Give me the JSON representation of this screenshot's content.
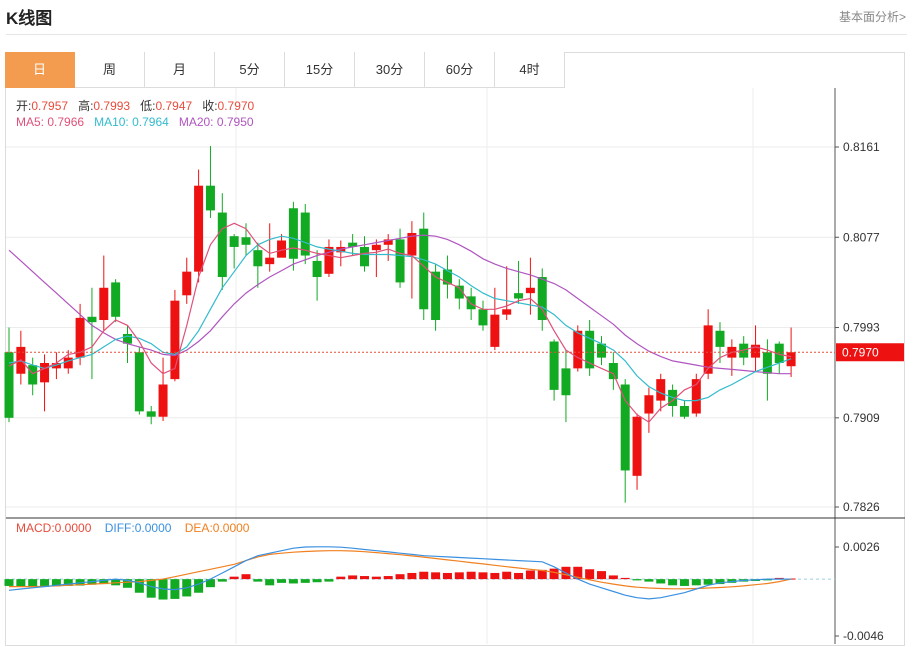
{
  "header": {
    "title": "K线图",
    "link": "基本面分析>"
  },
  "tabs": [
    {
      "label": "日",
      "active": true
    },
    {
      "label": "周",
      "active": false
    },
    {
      "label": "月",
      "active": false
    },
    {
      "label": "5分",
      "active": false
    },
    {
      "label": "15分",
      "active": false
    },
    {
      "label": "30分",
      "active": false
    },
    {
      "label": "60分",
      "active": false
    },
    {
      "label": "4时",
      "active": false
    }
  ],
  "ohlc_info": {
    "open_label": "开:",
    "open": "0.7957",
    "high_label": "高:",
    "high": "0.7993",
    "low_label": "低:",
    "low": "0.7947",
    "close_label": "收:",
    "close": "0.7970"
  },
  "ma_info": {
    "ma5_label": "MA5:",
    "ma5": "0.7966",
    "ma10_label": "MA10:",
    "ma10": "0.7964",
    "ma20_label": "MA20:",
    "ma20": "0.7950"
  },
  "macd_info": {
    "macd_label": "MACD:",
    "macd": "0.0000",
    "diff_label": "DIFF:",
    "diff": "0.0000",
    "dea_label": "DEA:",
    "dea": "0.0000"
  },
  "colors": {
    "up": "#ee1111",
    "down": "#11aa22",
    "ma5": "#e0507a",
    "ma10": "#33bbcc",
    "ma20": "#b055c0",
    "diff": "#3a90e0",
    "dea": "#f08020",
    "accent": "#f39c4f"
  },
  "chart_data": {
    "type": "candlestick",
    "price_ticks": [
      "0.8161",
      "0.8077",
      "0.7993",
      "0.7909",
      "0.7826"
    ],
    "price_range": [
      0.7826,
      0.8161
    ],
    "current_price": "0.7970",
    "macd_ticks": [
      "0.0026",
      "-0.0046"
    ],
    "macd_range": [
      -0.0046,
      0.0026
    ],
    "candles": [
      [
        0.797,
        0.7909,
        0.7993,
        0.7905
      ],
      [
        0.795,
        0.7975,
        0.799,
        0.794
      ],
      [
        0.7958,
        0.794,
        0.7965,
        0.793
      ],
      [
        0.7942,
        0.796,
        0.7968,
        0.7915
      ],
      [
        0.7955,
        0.796,
        0.797,
        0.7945
      ],
      [
        0.7955,
        0.7965,
        0.7972,
        0.795
      ],
      [
        0.7965,
        0.8002,
        0.8015,
        0.7958
      ],
      [
        0.8003,
        0.7998,
        0.803,
        0.7945
      ],
      [
        0.8,
        0.803,
        0.806,
        0.799
      ],
      [
        0.8035,
        0.8003,
        0.8038,
        0.7998
      ],
      [
        0.7987,
        0.7978,
        0.7995,
        0.796
      ],
      [
        0.797,
        0.7915,
        0.7975,
        0.7912
      ],
      [
        0.7915,
        0.791,
        0.792,
        0.7903
      ],
      [
        0.791,
        0.794,
        0.7965,
        0.7906
      ],
      [
        0.7945,
        0.8018,
        0.8028,
        0.7943
      ],
      [
        0.8023,
        0.8045,
        0.8058,
        0.8015
      ],
      [
        0.8045,
        0.8125,
        0.814,
        0.8035
      ],
      [
        0.8125,
        0.8102,
        0.8162,
        0.8095
      ],
      [
        0.81,
        0.804,
        0.8118,
        0.8028
      ],
      [
        0.8078,
        0.8068,
        0.808,
        0.8048
      ],
      [
        0.8077,
        0.807,
        0.809,
        0.806
      ],
      [
        0.8065,
        0.805,
        0.8072,
        0.803
      ],
      [
        0.8052,
        0.8058,
        0.809,
        0.8045
      ],
      [
        0.8058,
        0.8074,
        0.808,
        0.8062
      ],
      [
        0.8104,
        0.8057,
        0.811,
        0.8046
      ],
      [
        0.81,
        0.806,
        0.8108,
        0.8052
      ],
      [
        0.8055,
        0.804,
        0.8065,
        0.8018
      ],
      [
        0.8043,
        0.8068,
        0.8075,
        0.804
      ],
      [
        0.8063,
        0.8068,
        0.8074,
        0.805
      ],
      [
        0.8072,
        0.8068,
        0.808,
        0.806
      ],
      [
        0.8068,
        0.805,
        0.8078,
        0.8045
      ],
      [
        0.8065,
        0.807,
        0.8075,
        0.804
      ],
      [
        0.807,
        0.8075,
        0.808,
        0.8055
      ],
      [
        0.8075,
        0.8035,
        0.8085,
        0.803
      ],
      [
        0.806,
        0.8081,
        0.8092,
        0.802
      ],
      [
        0.8085,
        0.801,
        0.81,
        0.8
      ],
      [
        0.8045,
        0.8,
        0.8052,
        0.799
      ],
      [
        0.8047,
        0.8033,
        0.806,
        0.802
      ],
      [
        0.8032,
        0.802,
        0.8038,
        0.801
      ],
      [
        0.8022,
        0.801,
        0.803,
        0.8
      ],
      [
        0.801,
        0.7995,
        0.8018,
        0.799
      ],
      [
        0.7975,
        0.8005,
        0.803,
        0.7972
      ],
      [
        0.8005,
        0.801,
        0.805,
        0.8
      ],
      [
        0.8025,
        0.802,
        0.8055,
        0.8015
      ],
      [
        0.8025,
        0.803,
        0.8058,
        0.8005
      ],
      [
        0.804,
        0.8,
        0.8048,
        0.799
      ],
      [
        0.798,
        0.7935,
        0.7982,
        0.7925
      ],
      [
        0.7955,
        0.793,
        0.7972,
        0.7905
      ],
      [
        0.7955,
        0.799,
        0.7995,
        0.7952
      ],
      [
        0.799,
        0.7955,
        0.8,
        0.7948
      ],
      [
        0.7978,
        0.7965,
        0.7985,
        0.7958
      ],
      [
        0.796,
        0.7945,
        0.797,
        0.7935
      ],
      [
        0.794,
        0.786,
        0.7945,
        0.783
      ],
      [
        0.7855,
        0.791,
        0.7913,
        0.7842
      ],
      [
        0.7913,
        0.793,
        0.7937,
        0.7895
      ],
      [
        0.7925,
        0.7945,
        0.795,
        0.7915
      ],
      [
        0.7935,
        0.792,
        0.794,
        0.791
      ],
      [
        0.792,
        0.791,
        0.7925,
        0.7908
      ],
      [
        0.7913,
        0.7945,
        0.795,
        0.791
      ],
      [
        0.795,
        0.7995,
        0.801,
        0.7945
      ],
      [
        0.799,
        0.7975,
        0.7998,
        0.796
      ],
      [
        0.7965,
        0.7975,
        0.7982,
        0.7948
      ],
      [
        0.7978,
        0.7965,
        0.7985,
        0.7958
      ],
      [
        0.7965,
        0.7977,
        0.7995,
        0.7952
      ],
      [
        0.797,
        0.795,
        0.7982,
        0.7925
      ],
      [
        0.7978,
        0.796,
        0.798,
        0.795
      ],
      [
        0.7957,
        0.797,
        0.7993,
        0.7947
      ]
    ],
    "ma5": [
      0.7957,
      0.7963,
      0.795,
      0.7955,
      0.796,
      0.7968,
      0.797,
      0.7975,
      0.799,
      0.8,
      0.7995,
      0.798,
      0.796,
      0.795,
      0.7955,
      0.7995,
      0.804,
      0.807,
      0.8085,
      0.809,
      0.8085,
      0.807,
      0.8062,
      0.8065,
      0.8067,
      0.8065,
      0.8062,
      0.806,
      0.8058,
      0.806,
      0.8062,
      0.8063,
      0.8066,
      0.8062,
      0.806,
      0.805,
      0.804,
      0.8035,
      0.803,
      0.8015,
      0.801,
      0.801,
      0.8013,
      0.8018,
      0.802,
      0.801,
      0.799,
      0.7972,
      0.7965,
      0.796,
      0.7955,
      0.795,
      0.7925,
      0.7912,
      0.7905,
      0.7918,
      0.7925,
      0.7935,
      0.794,
      0.7955,
      0.7965,
      0.797,
      0.7972,
      0.7975,
      0.7972,
      0.7968,
      0.7966
    ],
    "ma10": [
      0.796,
      0.7962,
      0.7958,
      0.7955,
      0.7958,
      0.7962,
      0.7965,
      0.7968,
      0.7975,
      0.7982,
      0.7985,
      0.7983,
      0.7978,
      0.797,
      0.7968,
      0.7975,
      0.799,
      0.801,
      0.803,
      0.8045,
      0.806,
      0.807,
      0.8075,
      0.8078,
      0.8076,
      0.8072,
      0.8068,
      0.8066,
      0.8064,
      0.8062,
      0.8061,
      0.8061,
      0.8061,
      0.806,
      0.8059,
      0.8056,
      0.8052,
      0.8046,
      0.804,
      0.8032,
      0.8025,
      0.802,
      0.8018,
      0.8016,
      0.8014,
      0.8012,
      0.8005,
      0.7995,
      0.7988,
      0.7983,
      0.7978,
      0.7972,
      0.7962,
      0.7948,
      0.7938,
      0.7932,
      0.7928,
      0.7925,
      0.7925,
      0.7928,
      0.7935,
      0.794,
      0.7946,
      0.7952,
      0.7956,
      0.796,
      0.7964
    ],
    "ma20": [
      0.8065,
      0.8055,
      0.8045,
      0.8035,
      0.8025,
      0.8015,
      0.8005,
      0.7995,
      0.7988,
      0.7982,
      0.7978,
      0.7975,
      0.7972,
      0.7968,
      0.7967,
      0.7972,
      0.798,
      0.799,
      0.8003,
      0.8015,
      0.8025,
      0.8033,
      0.804,
      0.8046,
      0.8052,
      0.8056,
      0.806,
      0.8063,
      0.8066,
      0.8068,
      0.807,
      0.8072,
      0.8074,
      0.8076,
      0.8078,
      0.8079,
      0.8078,
      0.8075,
      0.807,
      0.8064,
      0.8057,
      0.8052,
      0.8048,
      0.8045,
      0.8042,
      0.8038,
      0.8034,
      0.8028,
      0.802,
      0.8012,
      0.8004,
      0.7996,
      0.7986,
      0.7978,
      0.7971,
      0.7966,
      0.7962,
      0.796,
      0.7958,
      0.7956,
      0.7955,
      0.7954,
      0.7953,
      0.7952,
      0.7951,
      0.795,
      0.795
    ],
    "macd_hist": [
      -0.00055,
      -0.0006,
      -0.00065,
      -0.00062,
      -0.00058,
      -0.00055,
      -0.00052,
      -0.00045,
      -0.0004,
      -0.0005,
      -0.0007,
      -0.0011,
      -0.0015,
      -0.00165,
      -0.0016,
      -0.0014,
      -0.0011,
      -0.00065,
      -0.0002,
      0.0002,
      0.0004,
      -0.0002,
      -0.0005,
      -0.0003,
      -0.00035,
      -0.0003,
      -0.00025,
      -0.0002,
      0.0002,
      0.0003,
      0.00025,
      0.0002,
      0.00025,
      0.0004,
      0.0005,
      0.0006,
      0.00055,
      0.0005,
      0.00055,
      0.0006,
      0.00055,
      0.0005,
      0.0006,
      0.0005,
      0.0007,
      0.00075,
      0.00085,
      0.001,
      0.001,
      0.0008,
      0.00065,
      0.0003,
      0.0001,
      -0.0001,
      -0.0002,
      -0.00035,
      -0.0005,
      -0.00055,
      -0.0005,
      -0.00045,
      -0.0004,
      -0.0003,
      -0.0002,
      -0.00015,
      -0.0001,
      0.0001,
      5e-05
    ],
    "diff": [
      -0.0009,
      -0.0008,
      -0.0007,
      -0.0006,
      -0.0005,
      -0.0004,
      -0.0003,
      -0.0002,
      -0.0001,
      0.0,
      -0.0001,
      -0.0003,
      -0.0006,
      -0.0008,
      -0.00085,
      -0.0007,
      -0.0004,
      0.0,
      0.0005,
      0.001,
      0.0015,
      0.0019,
      0.0021,
      0.0023,
      0.0025,
      0.0026,
      0.00262,
      0.00262,
      0.00258,
      0.0025,
      0.0024,
      0.0023,
      0.0022,
      0.0021,
      0.002,
      0.0019,
      0.00185,
      0.0018,
      0.00175,
      0.0017,
      0.00165,
      0.0016,
      0.00155,
      0.0015,
      0.00145,
      0.0014,
      0.001,
      0.0005,
      0.0,
      -0.0004,
      -0.0007,
      -0.001,
      -0.0013,
      -0.0015,
      -0.0016,
      -0.0015,
      -0.0013,
      -0.0011,
      -0.0008,
      -0.0005,
      -0.0003,
      -0.0002,
      -0.0001,
      -5e-05,
      0.0,
      0.0,
      0.0
    ],
    "dea": [
      -0.0006,
      -0.0006,
      -0.0006,
      -0.00058,
      -0.00055,
      -0.0005,
      -0.00045,
      -0.0004,
      -0.00035,
      -0.0003,
      -0.00025,
      -0.0002,
      -0.0001,
      0.0,
      0.0002,
      0.0004,
      0.0006,
      0.0008,
      0.001,
      0.0012,
      0.0015,
      0.0018,
      0.002,
      0.0021,
      0.00218,
      0.00224,
      0.00228,
      0.0023,
      0.0023,
      0.00228,
      0.00222,
      0.00215,
      0.00207,
      0.00198,
      0.00188,
      0.00178,
      0.00167,
      0.00156,
      0.00145,
      0.00134,
      0.00123,
      0.00112,
      0.00101,
      0.0009,
      0.0008,
      0.0007,
      0.00055,
      0.00035,
      0.00015,
      -5e-05,
      -0.00025,
      -0.0004,
      -0.00055,
      -0.00065,
      -0.00072,
      -0.00076,
      -0.00078,
      -0.00078,
      -0.00076,
      -0.00072,
      -0.00068,
      -0.00062,
      -0.00055,
      -0.00045,
      -0.00035,
      -0.0002,
      0.0
    ]
  }
}
